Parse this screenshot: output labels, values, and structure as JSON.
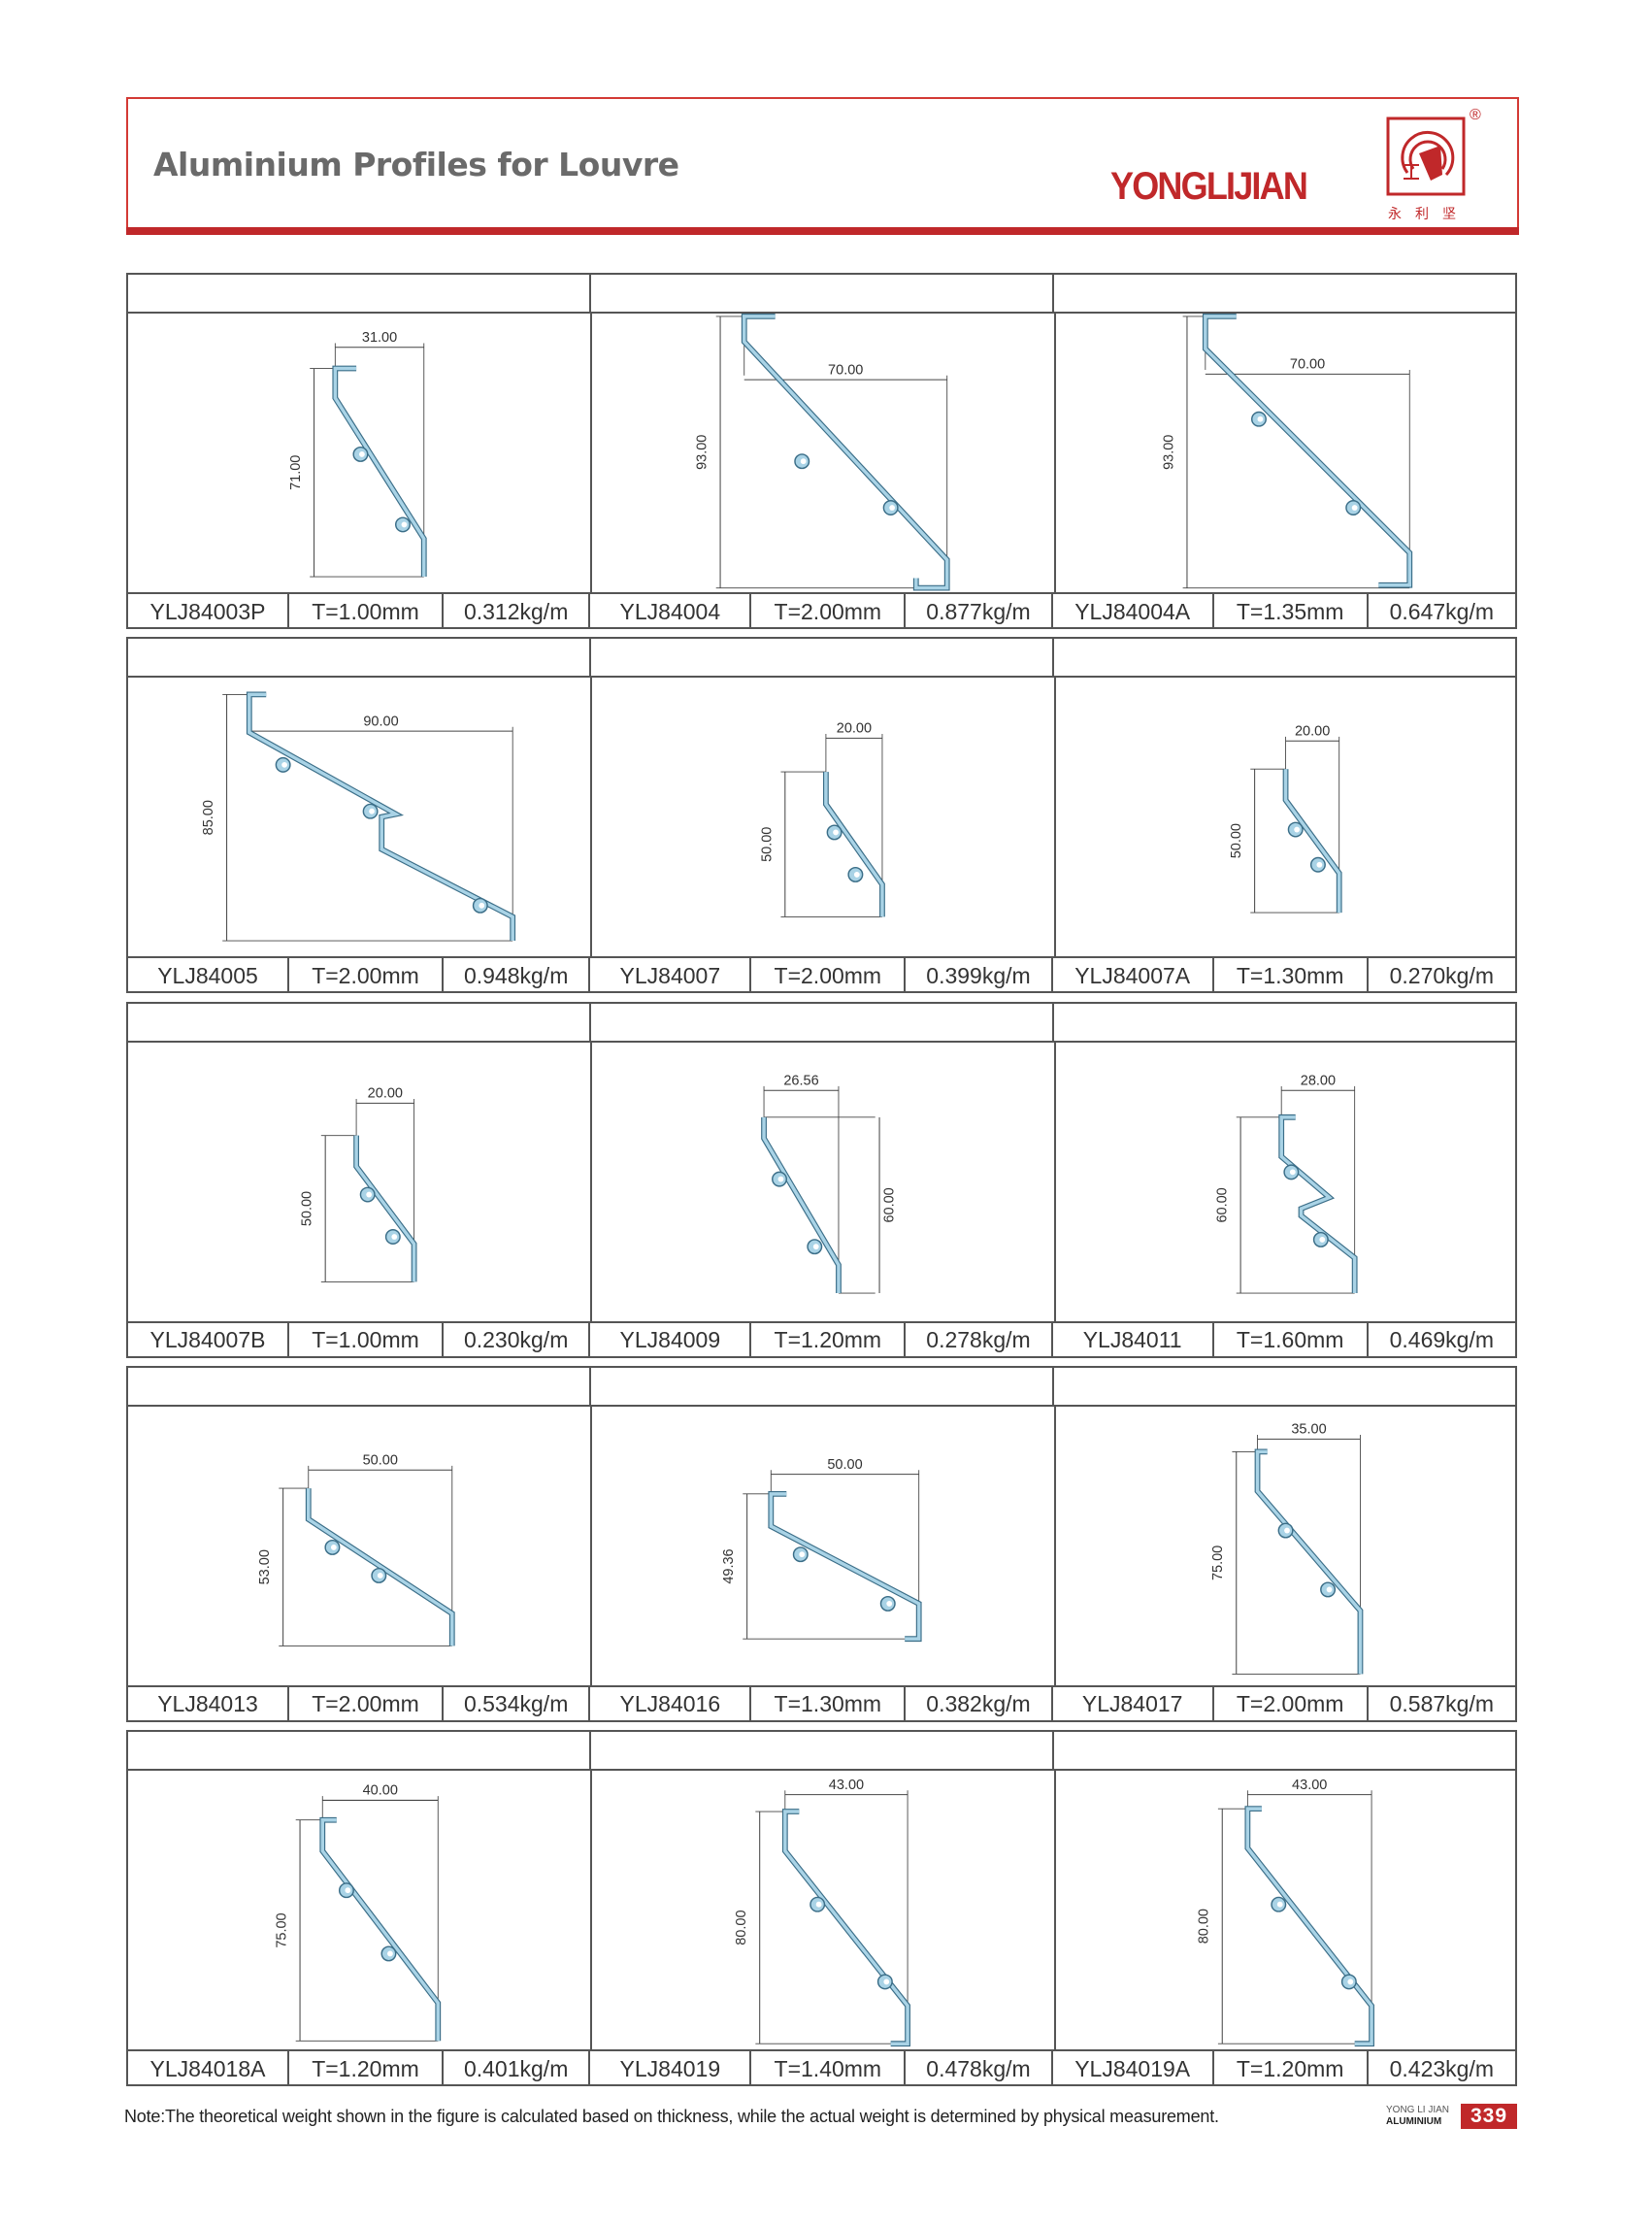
{
  "header": {
    "title": "Aluminium Profiles for Louvre",
    "brand": "YONGLIJIAN",
    "brand_cn": "永利坚",
    "registered": "®"
  },
  "colors": {
    "brand_red": "#c0282a",
    "profile_fill": "#a9d3e6",
    "profile_outline": "#3b6e88",
    "grid": "#555555"
  },
  "items": [
    {
      "code": "YLJ84003P",
      "thickness": "T=1.00mm",
      "weight": "0.312kg/m",
      "width_dim": "31.00",
      "height_dim": "71.00"
    },
    {
      "code": "YLJ84004",
      "thickness": "T=2.00mm",
      "weight": "0.877kg/m",
      "width_dim": "70.00",
      "height_dim": "93.00"
    },
    {
      "code": "YLJ84004A",
      "thickness": "T=1.35mm",
      "weight": "0.647kg/m",
      "width_dim": "70.00",
      "height_dim": "93.00"
    },
    {
      "code": "YLJ84005",
      "thickness": "T=2.00mm",
      "weight": "0.948kg/m",
      "width_dim": "90.00",
      "height_dim": "85.00"
    },
    {
      "code": "YLJ84007",
      "thickness": "T=2.00mm",
      "weight": "0.399kg/m",
      "width_dim": "20.00",
      "height_dim": "50.00"
    },
    {
      "code": "YLJ84007A",
      "thickness": "T=1.30mm",
      "weight": "0.270kg/m",
      "width_dim": "20.00",
      "height_dim": "50.00"
    },
    {
      "code": "YLJ84007B",
      "thickness": "T=1.00mm",
      "weight": "0.230kg/m",
      "width_dim": "20.00",
      "height_dim": "50.00"
    },
    {
      "code": "YLJ84009",
      "thickness": "T=1.20mm",
      "weight": "0.278kg/m",
      "width_dim": "26.56",
      "height_dim": "60.00"
    },
    {
      "code": "YLJ84011",
      "thickness": "T=1.60mm",
      "weight": "0.469kg/m",
      "width_dim": "28.00",
      "height_dim": "60.00"
    },
    {
      "code": "YLJ84013",
      "thickness": "T=2.00mm",
      "weight": "0.534kg/m",
      "width_dim": "50.00",
      "height_dim": "53.00"
    },
    {
      "code": "YLJ84016",
      "thickness": "T=1.30mm",
      "weight": "0.382kg/m",
      "width_dim": "50.00",
      "height_dim": "49.36"
    },
    {
      "code": "YLJ84017",
      "thickness": "T=2.00mm",
      "weight": "0.587kg/m",
      "width_dim": "35.00",
      "height_dim": "75.00"
    },
    {
      "code": "YLJ84018A",
      "thickness": "T=1.20mm",
      "weight": "0.401kg/m",
      "width_dim": "40.00",
      "height_dim": "75.00"
    },
    {
      "code": "YLJ84019",
      "thickness": "T=1.40mm",
      "weight": "0.478kg/m",
      "width_dim": "43.00",
      "height_dim": "80.00"
    },
    {
      "code": "YLJ84019A",
      "thickness": "T=1.20mm",
      "weight": "0.423kg/m",
      "width_dim": "43.00",
      "height_dim": "80.00"
    }
  ],
  "footer": {
    "note": "Note:The theoretical weight shown in the figure is calculated based on thickness, while the actual weight is determined by physical measurement.",
    "badge_line1": "YONG LI JIAN",
    "badge_line2": "ALUMINIUM",
    "page_number": "339"
  }
}
